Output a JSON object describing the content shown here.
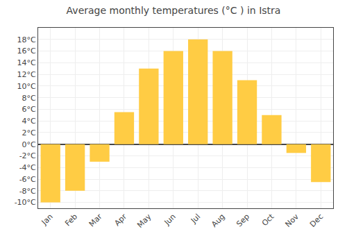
{
  "chart_data": {
    "type": "bar",
    "title": "Average monthly temperatures (°C ) in Istra",
    "categories": [
      "Jan",
      "Feb",
      "Mar",
      "Apr",
      "May",
      "Jun",
      "Jul",
      "Aug",
      "Sep",
      "Oct",
      "Nov",
      "Dec"
    ],
    "values": [
      -10,
      -8,
      -3,
      5.5,
      13,
      16,
      18,
      16,
      11,
      5,
      -1.5,
      -6.5
    ],
    "color": "#FFCC44",
    "ylim": [
      -11,
      20
    ],
    "yticks": [
      {
        "value": -10,
        "label": "-10°C"
      },
      {
        "value": -8,
        "label": "-8°C"
      },
      {
        "value": -6,
        "label": "-6°C"
      },
      {
        "value": -4,
        "label": "-4°C"
      },
      {
        "value": -2,
        "label": "-2°C"
      },
      {
        "value": 0,
        "label": "0°C"
      },
      {
        "value": 2,
        "label": "2°C"
      },
      {
        "value": 4,
        "label": "4°C"
      },
      {
        "value": 6,
        "label": "6°C"
      },
      {
        "value": 8,
        "label": "8°C"
      },
      {
        "value": 10,
        "label": "10°C"
      },
      {
        "value": 12,
        "label": "12°C"
      },
      {
        "value": 14,
        "label": "14°C"
      },
      {
        "value": 16,
        "label": "16°C"
      },
      {
        "value": 18,
        "label": "18°C"
      }
    ],
    "grid": true
  }
}
